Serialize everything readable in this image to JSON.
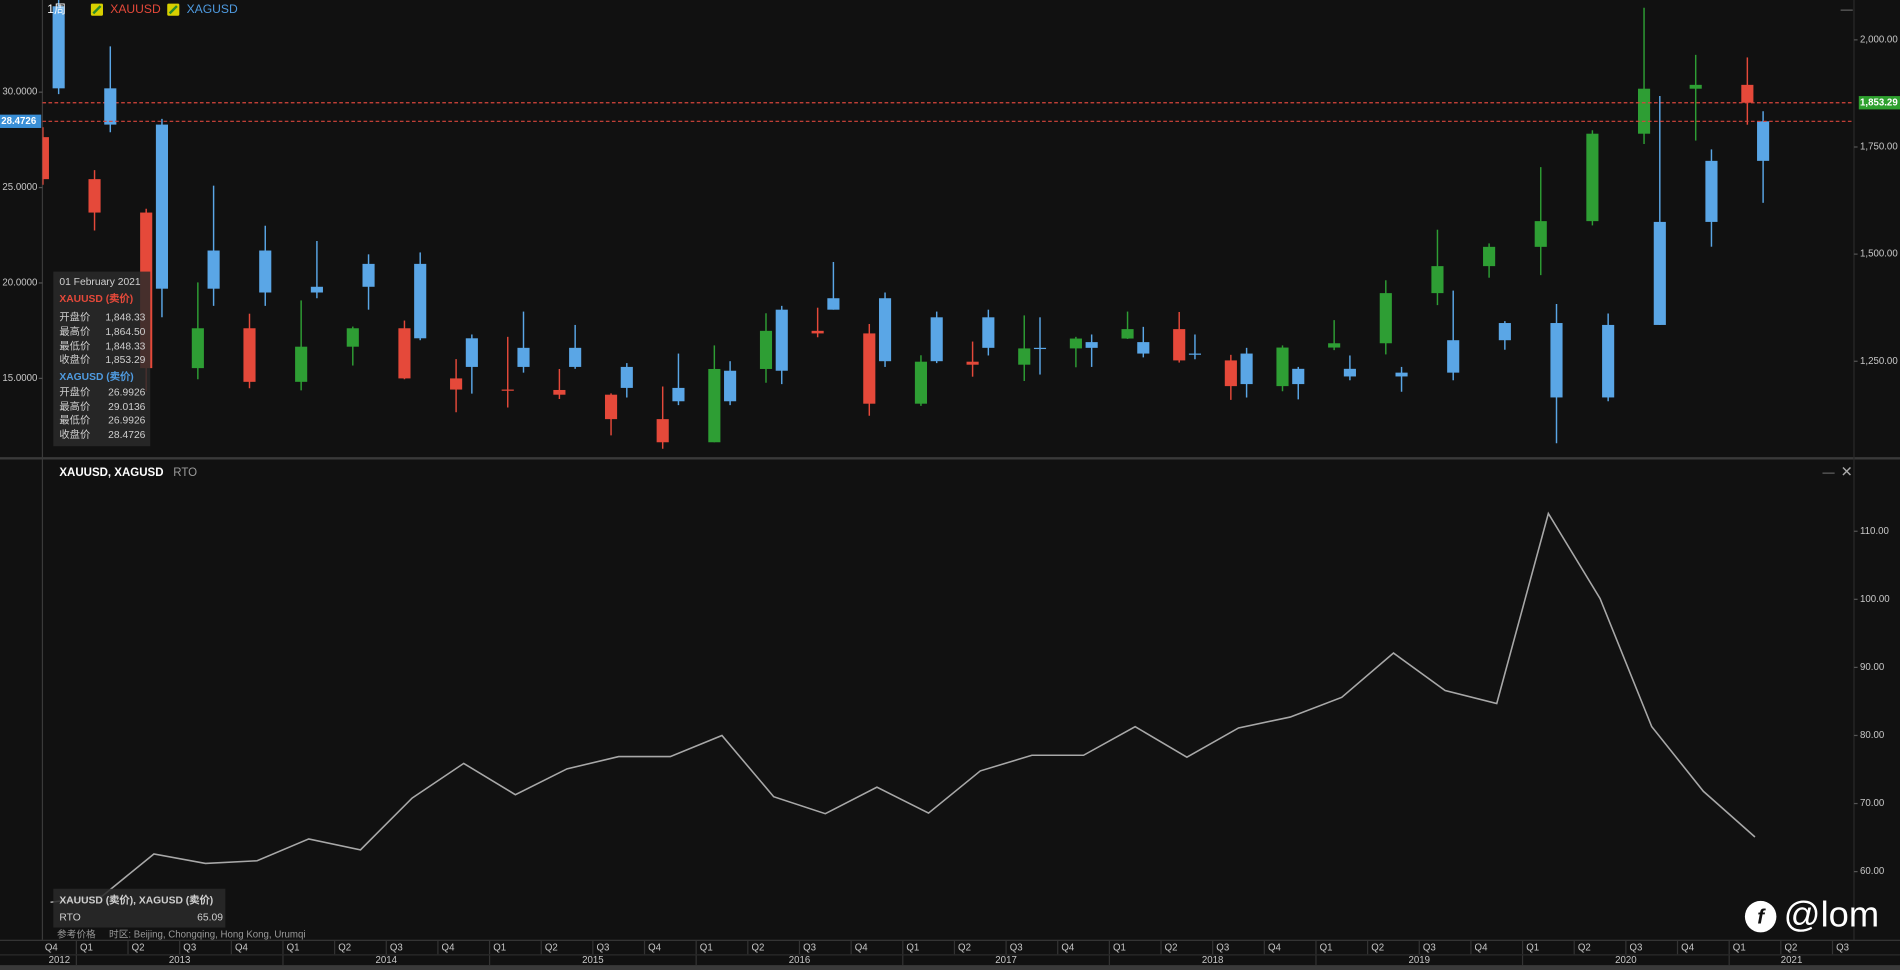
{
  "header": {
    "interval": "1周"
  },
  "chart_data": [
    {
      "type": "candlestick",
      "series": [
        {
          "name": "XAUUSD",
          "color": "#e5493a",
          "up_color": "#2e9e34",
          "down_color": "#e5493a",
          "tag_color": "#2ea02e",
          "axis": "y2",
          "last_label": "1,853.29",
          "open": [
            1773,
            1675,
            1597,
            1234,
            1327,
            1202,
            1284,
            1327,
            1210,
            1184,
            1183,
            1172,
            1115,
            1061,
            1232,
            1321,
            1315,
            1151,
            1249,
            1242,
            1280,
            1303,
            1325,
            1252,
            1192,
            1282,
            1292,
            1409,
            1472,
            1517,
            1577,
            1781,
            1886,
            1895,
            null,
            null
          ],
          "high": [
            1796,
            1696,
            1606,
            1434,
            1361,
            1392,
            1331,
            1345,
            1255,
            1307,
            1232,
            1175,
            1191,
            1287,
            1362,
            1375,
            1337,
            1264,
            1296,
            1357,
            1307,
            1366,
            1365,
            1265,
            1287,
            1346,
            1439,
            1557,
            1525,
            1703,
            1789,
            2075,
            1965,
            1959,
            null,
            null
          ],
          "low": [
            1662,
            1555,
            1180,
            1208,
            1187,
            1182,
            1240,
            1208,
            1131,
            1142,
            1162,
            1077,
            1046,
            1061,
            1200,
            1306,
            1123,
            1146,
            1214,
            1204,
            1236,
            1302,
            1247,
            1160,
            1180,
            1276,
            1266,
            1381,
            1445,
            1451,
            1567,
            1757,
            1765,
            1802,
            null,
            null
          ],
          "close": [
            1675,
            1597,
            1234,
            1327,
            1202,
            1284,
            1327,
            1210,
            1184,
            1183,
            1172,
            1115,
            1061,
            1232,
            1321,
            1315,
            1151,
            1249,
            1242,
            1280,
            1303,
            1325,
            1252,
            1192,
            1282,
            1292,
            1409,
            1472,
            1517,
            1577,
            1781,
            1886,
            1895,
            1853.29,
            null,
            null
          ]
        },
        {
          "name": "XAGUSD",
          "color": "#4f9be0",
          "up_color": "#5aa6e6",
          "down_color": "#5aa6e6",
          "tag_color": "#3a8fd6",
          "last_label": "28.4726",
          "open": [
            34.5,
            30.2,
            28.3,
            19.7,
            21.7,
            19.5,
            19.8,
            21.0,
            17.1,
            15.6,
            16.6,
            15.6,
            14.5,
            13.8,
            15.4,
            18.6,
            19.2,
            15.9,
            18.2,
            16.6,
            16.6,
            16.9,
            16.3,
            16.3,
            14.7,
            15.5,
            15.1,
            15.3,
            17.0,
            17.9,
            14.0,
            17.8,
            23.2,
            26.4,
            null,
            null
          ],
          "high": [
            35.4,
            32.4,
            28.6,
            25.1,
            23.0,
            22.2,
            21.5,
            21.6,
            17.3,
            18.5,
            17.8,
            15.8,
            16.3,
            15.9,
            18.8,
            21.1,
            19.5,
            18.5,
            18.6,
            18.2,
            17.3,
            17.7,
            17.3,
            16.6,
            15.6,
            16.2,
            15.6,
            19.6,
            18.0,
            18.9,
            18.4,
            29.8,
            27.0,
            29.0,
            null,
            null
          ],
          "low": [
            29.9,
            27.9,
            18.2,
            18.8,
            18.8,
            19.2,
            18.6,
            17.0,
            14.2,
            15.3,
            15.5,
            14.0,
            13.6,
            13.6,
            14.7,
            18.6,
            15.6,
            15.8,
            16.2,
            15.2,
            15.6,
            16.1,
            16.0,
            14.0,
            13.9,
            14.9,
            14.3,
            14.9,
            16.5,
            11.6,
            13.8,
            17.8,
            21.9,
            24.2,
            null,
            null
          ],
          "close": [
            30.2,
            28.3,
            19.7,
            21.7,
            19.5,
            19.8,
            21.0,
            17.1,
            15.6,
            16.6,
            15.6,
            14.5,
            13.8,
            15.4,
            18.6,
            19.2,
            15.9,
            18.2,
            16.6,
            16.6,
            16.9,
            16.3,
            16.3,
            14.7,
            15.5,
            15.1,
            15.3,
            17.0,
            17.9,
            14.0,
            17.8,
            23.2,
            26.4,
            28.4726,
            null,
            null
          ]
        }
      ],
      "ylim": [
        11,
        34.83
      ],
      "yticks": [
        {
          "value": 15,
          "label": "15.0000"
        },
        {
          "value": 20,
          "label": "20.0000"
        },
        {
          "value": 25,
          "label": "25.0000"
        },
        {
          "value": 30,
          "label": "30.0000"
        }
      ],
      "y2lim": [
        1032,
        2093
      ],
      "y2ticks": [
        {
          "value": 1250,
          "label": "1,250.00"
        },
        {
          "value": 1500,
          "label": "1,500.00"
        },
        {
          "value": 1750,
          "label": "1,750.00"
        },
        {
          "value": 2000,
          "label": "2,000.00"
        }
      ]
    },
    {
      "type": "line",
      "title": "XAUUSD, XAGUSD",
      "subtitle": "RTO",
      "categories": [
        "Q4",
        "Q1",
        "Q2",
        "Q3",
        "Q4",
        "Q1",
        "Q2",
        "Q3",
        "Q4",
        "Q1",
        "Q2",
        "Q3",
        "Q4",
        "Q1",
        "Q2",
        "Q3",
        "Q4",
        "Q1",
        "Q2",
        "Q3",
        "Q4",
        "Q1",
        "Q2",
        "Q3",
        "Q4",
        "Q1",
        "Q2",
        "Q3",
        "Q4",
        "Q1",
        "Q2",
        "Q3",
        "Q4",
        "Q1",
        "Q2",
        "Q3"
      ],
      "years": [
        "2012",
        "2013",
        "2014",
        "2015",
        "2016",
        "2017",
        "2018",
        "2019",
        "2020",
        "2021"
      ],
      "series": [
        {
          "name": "RTO",
          "color": "#a8a8a8",
          "values": [
            55.5,
            56.4,
            62.6,
            61.2,
            61.6,
            64.8,
            63.2,
            70.8,
            75.9,
            71.3,
            75.1,
            76.9,
            76.9,
            80.0,
            71.0,
            68.5,
            72.4,
            68.6,
            74.8,
            77.1,
            77.1,
            81.3,
            76.8,
            81.1,
            82.7,
            85.6,
            92.1,
            86.6,
            84.7,
            112.6,
            100.1,
            81.3,
            71.8,
            65.09,
            null,
            null
          ]
        }
      ],
      "ylim": [
        50,
        120
      ],
      "yticks": [
        {
          "value": 60,
          "label": "60.00"
        },
        {
          "value": 70,
          "label": "70.00"
        },
        {
          "value": 80,
          "label": "80.00"
        },
        {
          "value": 90,
          "label": "90.00"
        },
        {
          "value": 100,
          "label": "100.00"
        },
        {
          "value": 110,
          "label": "110.00"
        }
      ]
    }
  ],
  "info": {
    "date": "01 February 2021",
    "groups": [
      {
        "title": "XAUUSD (卖价)",
        "rows": [
          [
            "开盘价",
            "1,848.33"
          ],
          [
            "最高价",
            "1,864.50"
          ],
          [
            "最低价",
            "1,848.33"
          ],
          [
            "收盘价",
            "1,853.29"
          ]
        ]
      },
      {
        "title": "XAGUSD (卖价)",
        "rows": [
          [
            "开盘价",
            "26.9926"
          ],
          [
            "最高价",
            "29.0136"
          ],
          [
            "最低价",
            "26.9926"
          ],
          [
            "收盘价",
            "28.4726"
          ]
        ]
      }
    ]
  },
  "ratio_info": {
    "title": "XAUUSD (卖价), XAGUSD (卖价)",
    "label": "RTO",
    "value": 65.09
  },
  "footer": {
    "reference": "参考价格",
    "timezone": "时区: Beijing, Chongqing, Hong Kong, Urumqi"
  },
  "watermark": "@lom"
}
